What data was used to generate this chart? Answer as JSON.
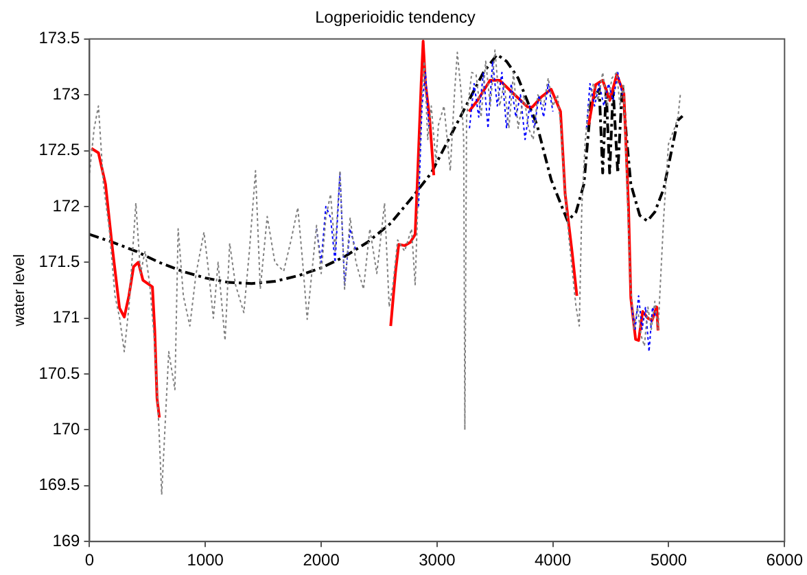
{
  "chart_data": {
    "type": "line",
    "title": "Logperioidic tendency",
    "ylabel": "water level",
    "xlim": [
      0,
      6000
    ],
    "xticks": [
      0,
      1000,
      2000,
      3000,
      4000,
      5000,
      6000
    ],
    "ylim": [
      169,
      173.5
    ],
    "yticks": [
      169,
      169.5,
      170,
      170.5,
      171,
      171.5,
      172,
      172.5,
      173,
      173.5
    ],
    "grid": false,
    "legend": false,
    "marker": "none",
    "series": [
      {
        "color": "#808080",
        "line_style": "dotted",
        "x": [
          0,
          40,
          77,
          120,
          170,
          220,
          260,
          300,
          340,
          400,
          440,
          480,
          520,
          560,
          600,
          623,
          660,
          684,
          737,
          765,
          810,
          866,
          920,
          988,
          1030,
          1069,
          1110,
          1170,
          1210,
          1260,
          1332,
          1380,
          1433,
          1474,
          1534,
          1600,
          1676,
          1740,
          1798,
          1840,
          1879,
          1960,
          2000,
          2040,
          2081,
          2120,
          2162,
          2202,
          2250,
          2300,
          2365,
          2420,
          2480,
          2547,
          2587,
          2620,
          2660,
          2720,
          2780,
          2811,
          2840,
          2870,
          2890,
          2920,
          2950,
          2990,
          3012,
          3060,
          3114,
          3150,
          3175,
          3210,
          3230,
          3240,
          3255,
          3300,
          3337,
          3380,
          3420,
          3460,
          3500,
          3540,
          3580,
          3620,
          3660,
          3700,
          3750,
          3790,
          3830,
          3870,
          3920,
          3960,
          4000,
          4040,
          4070,
          4100,
          4140,
          4170,
          4200,
          4228,
          4250,
          4280,
          4310,
          4350,
          4390,
          4430,
          4470,
          4510,
          4550,
          4580,
          4610,
          4640,
          4670,
          4700,
          4730,
          4760,
          4790,
          4820,
          4850,
          4880,
          4908,
          4957,
          4998,
          5050,
          5080,
          5100
        ],
        "values": [
          172.3,
          172.7,
          172.9,
          172.2,
          171.8,
          171.2,
          171.0,
          170.7,
          171.1,
          172.03,
          171.4,
          171.6,
          171.3,
          170.8,
          170.0,
          169.42,
          170.2,
          170.7,
          170.36,
          171.8,
          171.2,
          170.93,
          171.4,
          171.77,
          171.4,
          171.0,
          171.5,
          170.8,
          171.67,
          171.3,
          171.05,
          171.6,
          172.32,
          171.26,
          171.91,
          171.5,
          171.42,
          171.7,
          171.99,
          171.5,
          170.99,
          171.83,
          171.4,
          171.9,
          172.11,
          171.6,
          172.32,
          171.26,
          171.9,
          171.5,
          171.26,
          171.8,
          171.4,
          172.03,
          171.1,
          171.3,
          171.7,
          171.6,
          171.8,
          171.3,
          172.2,
          173.0,
          173.3,
          172.6,
          172.9,
          172.4,
          172.73,
          172.9,
          172.32,
          173.0,
          173.38,
          173.0,
          172.6,
          170.0,
          172.8,
          173.2,
          173.18,
          172.8,
          173.3,
          172.9,
          173.4,
          172.9,
          173.1,
          172.7,
          173.2,
          172.7,
          173.0,
          172.7,
          172.6,
          173.0,
          172.9,
          173.15,
          172.9,
          173.0,
          172.7,
          172.2,
          171.7,
          171.4,
          171.1,
          170.93,
          172.0,
          172.6,
          172.9,
          173.1,
          172.95,
          173.2,
          172.9,
          173.15,
          173.2,
          172.9,
          173.1,
          172.2,
          171.3,
          170.9,
          171.1,
          170.85,
          170.75,
          171.1,
          170.9,
          171.15,
          170.9,
          171.91,
          172.56,
          172.7,
          172.8,
          173.0
        ]
      },
      {
        "color": "#0000ff",
        "line_style": "dotted",
        "x": [
          1960,
          2000,
          2040,
          2081,
          2120,
          2162,
          2202,
          2250,
          2300,
          2400,
          2840,
          2870,
          2900,
          2930,
          3100,
          3280,
          3320,
          3360,
          3400,
          3440,
          3480,
          3520,
          3560,
          3600,
          3640,
          3680,
          3720,
          3760,
          3800,
          3840,
          3880,
          3920,
          3960,
          4000,
          4150,
          4290,
          4320,
          4360,
          4400,
          4440,
          4480,
          4520,
          4560,
          4600,
          4640,
          4680,
          4710,
          4740,
          4770,
          4800,
          4830,
          4860,
          4890
        ],
        "values": [
          171.8,
          171.5,
          172.0,
          171.9,
          171.5,
          172.3,
          171.3,
          171.8,
          171.6,
          null,
          172.0,
          172.9,
          173.2,
          172.7,
          null,
          172.7,
          173.1,
          172.8,
          173.2,
          172.7,
          173.3,
          172.9,
          173.2,
          172.7,
          173.1,
          172.8,
          173.0,
          172.6,
          172.9,
          172.7,
          173.0,
          172.8,
          173.1,
          172.85,
          null,
          172.7,
          173.1,
          172.9,
          173.1,
          172.9,
          173.1,
          172.95,
          173.2,
          173.0,
          null,
          171.1,
          170.9,
          171.2,
          170.9,
          171.1,
          170.7,
          171.1,
          171.0
        ]
      },
      {
        "color": "#ff0000",
        "line_style": "solid",
        "x": [
          16,
          77,
          138,
          198,
          259,
          300,
          340,
          380,
          421,
          461,
          543,
          563,
          583,
          603,
          1500,
          2600,
          2640,
          2669,
          2720,
          2770,
          2811,
          2831,
          2863,
          2880,
          2900,
          2935,
          2972,
          3100,
          3276,
          3350,
          3458,
          3540,
          3660,
          3783,
          3822,
          3900,
          3985,
          4066,
          4106,
          4167,
          4207,
          4250,
          4309,
          4369,
          4430,
          4491,
          4552,
          4613,
          4653,
          4673,
          4714,
          4740,
          4775,
          4820,
          4856,
          4896,
          4908
        ],
        "values": [
          172.52,
          172.48,
          172.2,
          171.62,
          171.09,
          171.01,
          171.2,
          171.46,
          171.5,
          171.34,
          171.28,
          170.89,
          170.28,
          170.11,
          null,
          170.93,
          171.4,
          171.66,
          171.65,
          171.68,
          171.75,
          172.24,
          173.1,
          173.48,
          173.1,
          172.8,
          172.28,
          null,
          172.85,
          172.95,
          173.13,
          173.13,
          173.01,
          172.89,
          172.89,
          172.98,
          173.05,
          172.85,
          172.11,
          171.58,
          171.2,
          null,
          172.73,
          173.09,
          173.13,
          172.95,
          173.18,
          173.01,
          171.99,
          171.18,
          170.81,
          170.8,
          171.06,
          171.0,
          170.98,
          171.1,
          170.89
        ]
      },
      {
        "color": "#000000",
        "line_style": "dashed",
        "x": [
          0,
          200,
          400,
          600,
          800,
          1000,
          1200,
          1400,
          1600,
          1800,
          2000,
          2200,
          2400,
          2600,
          2800,
          2950,
          3100,
          3250,
          3400,
          3518,
          3600,
          3700,
          3863,
          3985,
          4127,
          4200,
          4268,
          4329,
          4400,
          4430,
          4460,
          4490,
          4520,
          4560,
          4600,
          4633,
          4673,
          4750,
          4815,
          4880,
          4957,
          5078,
          5119
        ],
        "values": [
          171.75,
          171.68,
          171.6,
          171.5,
          171.42,
          171.36,
          171.32,
          171.31,
          171.33,
          171.38,
          171.45,
          171.55,
          171.68,
          171.85,
          172.1,
          172.3,
          172.6,
          172.9,
          173.2,
          173.36,
          173.3,
          173.15,
          172.73,
          172.24,
          171.87,
          171.95,
          172.2,
          172.93,
          173.05,
          172.3,
          173.05,
          172.3,
          173.05,
          172.3,
          173.1,
          172.65,
          172.2,
          171.92,
          171.87,
          171.95,
          172.16,
          172.77,
          172.81
        ]
      }
    ]
  }
}
